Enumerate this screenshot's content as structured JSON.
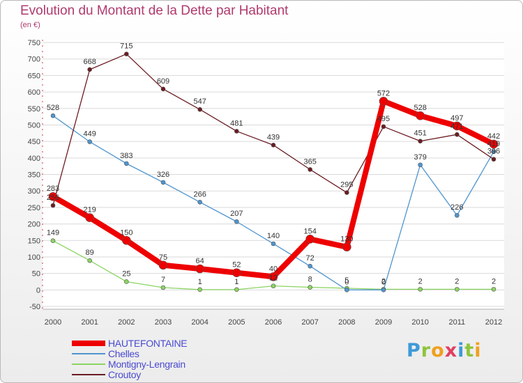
{
  "chart_data": {
    "type": "line",
    "title": "Evolution du Montant de la Dette par Habitant",
    "subtitle": "(en €)",
    "x": [
      "2000",
      "2001",
      "2002",
      "2003",
      "2004",
      "2005",
      "2006",
      "2007",
      "2008",
      "2009",
      "2010",
      "2011",
      "2012"
    ],
    "ylim": [
      -50,
      750
    ],
    "yticks": [
      -50,
      0,
      50,
      100,
      150,
      200,
      250,
      300,
      350,
      400,
      450,
      500,
      550,
      600,
      650,
      700,
      750
    ],
    "grid": true,
    "legend_position": "bottom-left",
    "series": [
      {
        "name": "HAUTEFONTAINE",
        "color": "#ee0000",
        "values": [
          283,
          219,
          150,
          75,
          64,
          52,
          40,
          154,
          130,
          572,
          528,
          497,
          442
        ]
      },
      {
        "name": "Chelles",
        "color": "#4f95cf",
        "values": [
          528,
          449,
          383,
          326,
          266,
          207,
          140,
          72,
          0,
          0,
          379,
          226,
          419
        ]
      },
      {
        "name": "Montigny-Lengrain",
        "color": "#8bd462",
        "values": [
          149,
          89,
          25,
          7,
          1,
          1,
          12,
          8,
          5,
          2,
          2,
          2,
          2
        ]
      },
      {
        "name": "Croutoy",
        "color": "#6b1c22",
        "values": [
          256,
          668,
          715,
          609,
          547,
          481,
          439,
          365,
          295,
          495,
          451,
          471,
          396
        ]
      }
    ],
    "data_labels": {
      "HAUTEFONTAINE": [
        "283",
        "219",
        "150",
        "75",
        "64",
        "52",
        "40",
        "154",
        "130",
        "572",
        "528",
        "497",
        "442"
      ],
      "Chelles": [
        "528",
        "449",
        "383",
        "326",
        "266",
        "207",
        "140",
        "72",
        "0",
        "0",
        "379",
        "226",
        "419"
      ],
      "Montigny-Lengrain": [
        "149",
        "89",
        "25",
        "7",
        "1",
        "1",
        "12",
        "8",
        "5",
        "2",
        "2",
        "2",
        "2"
      ],
      "Croutoy": [
        "256",
        "668",
        "715",
        "609",
        "547",
        "481",
        "439",
        "365",
        "295",
        "495",
        "451",
        "471",
        "396"
      ]
    }
  },
  "logo": {
    "text": "Proxiti",
    "letters": [
      "P",
      "r",
      "o",
      "x",
      "i",
      "t",
      "i"
    ]
  }
}
